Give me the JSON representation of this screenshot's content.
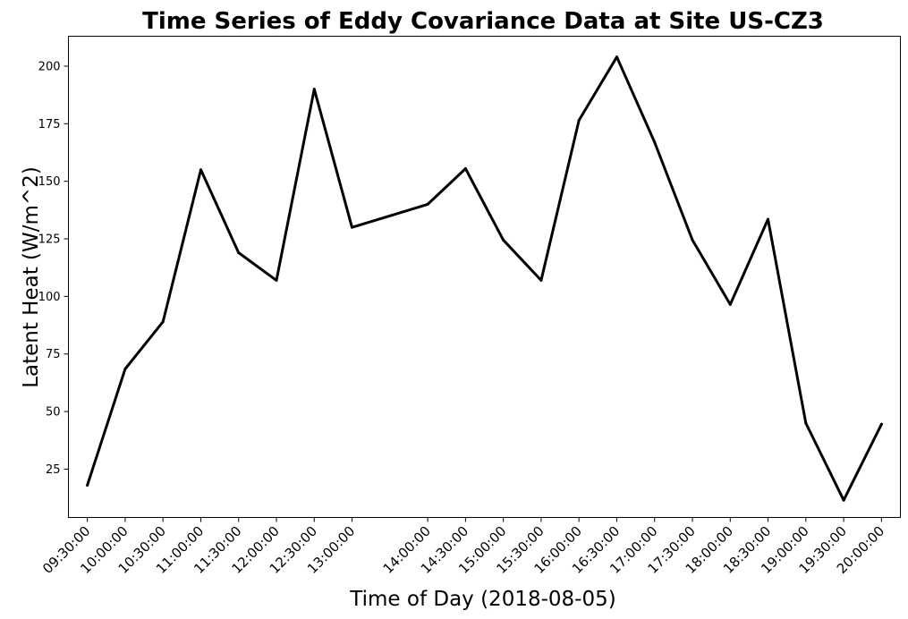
{
  "chart_data": {
    "type": "line",
    "title": "Time Series of Eddy Covariance Data at Site US-CZ3",
    "xlabel": "Time of Day (2018-08-05)",
    "ylabel": "Latent Heat (W/m^2)",
    "x": [
      "09:30:00",
      "10:00:00",
      "10:30:00",
      "11:00:00",
      "11:30:00",
      "12:00:00",
      "12:30:00",
      "13:00:00",
      "14:00:00",
      "14:30:00",
      "15:00:00",
      "15:30:00",
      "16:00:00",
      "16:30:00",
      "17:00:00",
      "17:30:00",
      "18:00:00",
      "18:30:00",
      "19:00:00",
      "19:30:00",
      "20:00:00"
    ],
    "series": [
      {
        "color": "#000000",
        "values": [
          18,
          68.5,
          89,
          155,
          119,
          107,
          190,
          130,
          140,
          155.5,
          124.5,
          107,
          176.5,
          204,
          167,
          124.5,
          96.5,
          133.5,
          45,
          11.5,
          44.5
        ]
      }
    ],
    "yticks": [
      25,
      50,
      75,
      100,
      125,
      150,
      175,
      200
    ],
    "ylim": [
      4,
      213
    ],
    "xlim": [
      "09:15:00",
      "20:15:00"
    ],
    "grid": false,
    "legend": "none"
  }
}
